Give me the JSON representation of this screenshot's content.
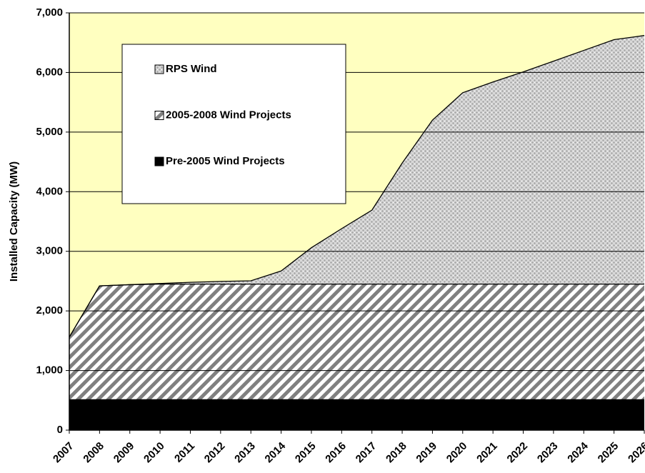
{
  "chart_data": {
    "type": "stacked_area",
    "y_label": "Installed Capacity (MW)",
    "x": [
      2007,
      2008,
      2009,
      2010,
      2011,
      2012,
      2013,
      2014,
      2015,
      2016,
      2017,
      2018,
      2019,
      2020,
      2021,
      2022,
      2023,
      2024,
      2025,
      2026
    ],
    "xlim": [
      2007,
      2026
    ],
    "xticks": [
      2007,
      2008,
      2009,
      2010,
      2011,
      2012,
      2013,
      2014,
      2015,
      2016,
      2017,
      2018,
      2019,
      2020,
      2021,
      2022,
      2023,
      2024,
      2025,
      2026
    ],
    "ylim": [
      0,
      7000
    ],
    "yticks": [
      0,
      {
        "value": 1000,
        "label": "1,000"
      },
      {
        "value": 2000,
        "label": "2,000"
      },
      {
        "value": 3000,
        "label": "3,000"
      },
      {
        "value": 4000,
        "label": "4,000"
      },
      {
        "value": 5000,
        "label": "5,000"
      },
      {
        "value": 6000,
        "label": "6,000"
      },
      {
        "value": 7000,
        "label": "7,000"
      }
    ],
    "grid": true,
    "legend_position": "upper left",
    "background": "#ffffc0",
    "series": [
      {
        "name": "Pre-2005 Wind Projects",
        "color": "#000000",
        "pattern": "solid",
        "values": [
          510,
          510,
          510,
          510,
          510,
          510,
          510,
          510,
          510,
          510,
          510,
          510,
          510,
          510,
          510,
          510,
          510,
          510,
          510,
          510
        ]
      },
      {
        "name": "2005-2008 Wind Projects",
        "color": "#808080",
        "pattern": "stripes",
        "values": [
          1050,
          1910,
          1930,
          1940,
          1940,
          1940,
          1940,
          1940,
          1940,
          1940,
          1940,
          1940,
          1940,
          1940,
          1940,
          1940,
          1940,
          1940,
          1940,
          1940
        ]
      },
      {
        "name": "RPS Wind",
        "color": "#a0a0a0",
        "pattern": "dots",
        "values": [
          0,
          0,
          0,
          10,
          30,
          45,
          55,
          220,
          610,
          930,
          1240,
          2030,
          2750,
          3210,
          3390,
          3560,
          3740,
          3920,
          4100,
          4170
        ]
      }
    ]
  }
}
